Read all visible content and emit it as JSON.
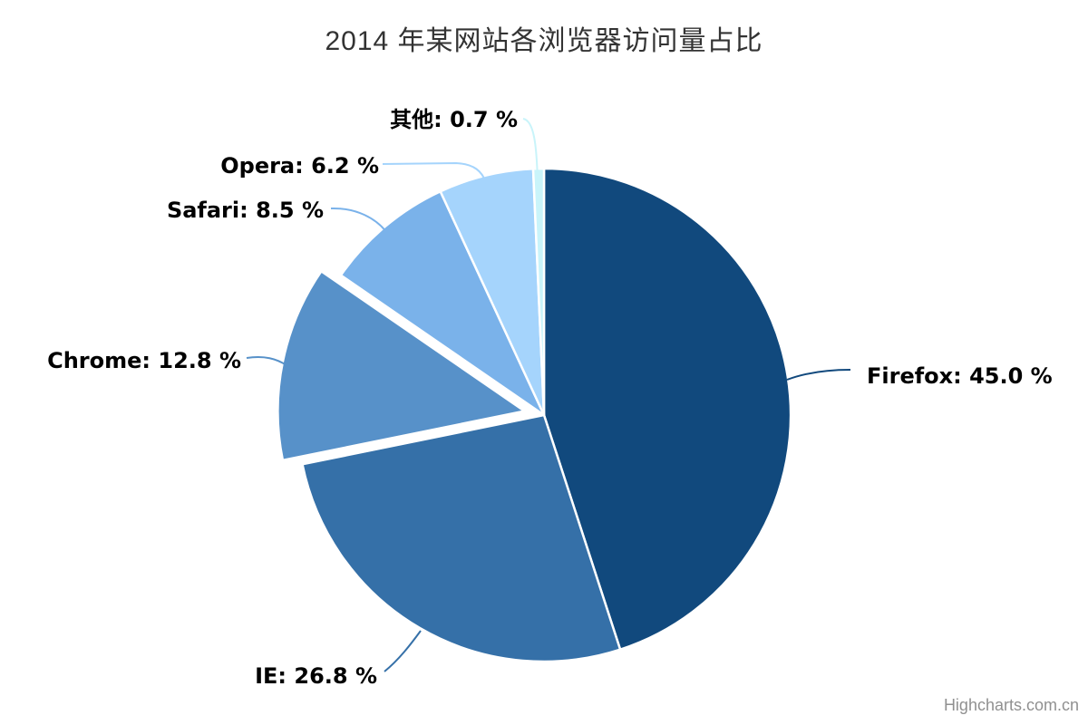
{
  "chart_data": {
    "type": "pie",
    "title": "2014 年某网站各浏览器访问量占比",
    "unit": "%",
    "legend": "off",
    "start_angle_deg": 0,
    "direction": "clockwise",
    "label_format": "{name}: {value} %",
    "points": [
      {
        "name": "Firefox",
        "value": 45.0,
        "label": "Firefox: 45.0 %",
        "color": "#11497D",
        "sliced": false
      },
      {
        "name": "IE",
        "value": 26.8,
        "label": "IE: 26.8 %",
        "color": "#3570A8",
        "sliced": false
      },
      {
        "name": "Chrome",
        "value": 12.8,
        "label": "Chrome: 12.8 %",
        "color": "#5791C9",
        "sliced": true
      },
      {
        "name": "Safari",
        "value": 8.5,
        "label": "Safari: 8.5 %",
        "color": "#7AB2EA",
        "sliced": false
      },
      {
        "name": "Opera",
        "value": 6.2,
        "label": "Opera: 6.2 %",
        "color": "#A5D4FC",
        "sliced": false
      },
      {
        "name": "其他",
        "value": 0.7,
        "label": "其他: 0.7 %",
        "color": "#C9F4FA",
        "sliced": false
      }
    ],
    "credits": "Highcharts.com.cn"
  }
}
